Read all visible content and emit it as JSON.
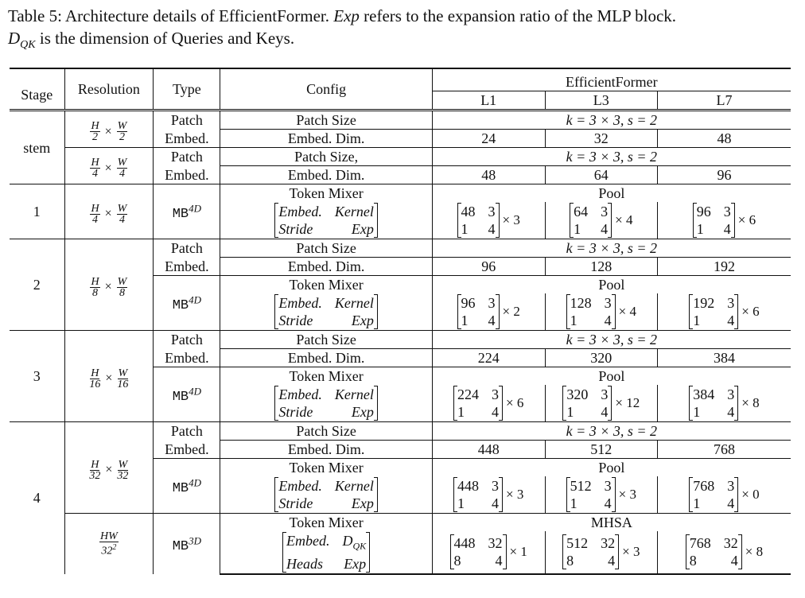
{
  "caption": {
    "label": "Table 5: Architecture details of EfficientFormer.",
    "exp": "Exp",
    "part2": " refers to the expansion ratio of the MLP block.",
    "dqk_main": "D",
    "dqk_sub": "QK",
    "part3": " is the dimension of Queries and Keys."
  },
  "header": {
    "stage": "Stage",
    "resolution": "Resolution",
    "type": "Type",
    "config": "Config",
    "group": "EfficientFormer",
    "l1": "L1",
    "l3": "L3",
    "l7": "L7"
  },
  "common": {
    "patch": "Patch",
    "embed": "Embed.",
    "patch_size": "Patch Size",
    "patch_size_comma": "Patch Size,",
    "embed_dim": "Embed. Dim.",
    "token_mixer": "Token Mixer",
    "ks": "k = 3 × 3, s = 2",
    "pool": "Pool",
    "mhsa": "MHSA",
    "mb": "MB",
    "sup4d": "4D",
    "sup3d": "3D",
    "times": "×",
    "cfg_embed": "Embed.",
    "cfg_kernel": "Kernel",
    "cfg_stride": "Stride",
    "cfg_exp": "Exp",
    "cfg_heads": "Heads",
    "cfg_dqk": "D",
    "cfg_dqk_sub": "QK"
  },
  "res": {
    "H": "H",
    "W": "W",
    "HW": "HW",
    "d2": "2",
    "d4": "4",
    "d8": "8",
    "d16": "16",
    "d32": "32",
    "d32sq": "32",
    "sq": "2"
  },
  "stages": {
    "stem": "stem",
    "s1": "1",
    "s2": "2",
    "s3": "3",
    "s4": "4"
  },
  "values": {
    "stem_a": [
      "24",
      "32",
      "48"
    ],
    "stem_b": [
      "48",
      "64",
      "96"
    ],
    "s1_mat": [
      {
        "e": "48",
        "k": "3",
        "s": "1",
        "x": "4",
        "rep": "× 3"
      },
      {
        "e": "64",
        "k": "3",
        "s": "1",
        "x": "4",
        "rep": "× 4"
      },
      {
        "e": "96",
        "k": "3",
        "s": "1",
        "x": "4",
        "rep": "× 6"
      }
    ],
    "s2_dim": [
      "96",
      "128",
      "192"
    ],
    "s2_mat": [
      {
        "e": "96",
        "k": "3",
        "s": "1",
        "x": "4",
        "rep": "× 2"
      },
      {
        "e": "128",
        "k": "3",
        "s": "1",
        "x": "4",
        "rep": "× 4"
      },
      {
        "e": "192",
        "k": "3",
        "s": "1",
        "x": "4",
        "rep": "× 6"
      }
    ],
    "s3_dim": [
      "224",
      "320",
      "384"
    ],
    "s3_mat": [
      {
        "e": "224",
        "k": "3",
        "s": "1",
        "x": "4",
        "rep": "× 6"
      },
      {
        "e": "320",
        "k": "3",
        "s": "1",
        "x": "4",
        "rep": "× 12"
      },
      {
        "e": "384",
        "k": "3",
        "s": "1",
        "x": "4",
        "rep": "× 8"
      }
    ],
    "s4_dim": [
      "448",
      "512",
      "768"
    ],
    "s4_mat": [
      {
        "e": "448",
        "k": "3",
        "s": "1",
        "x": "4",
        "rep": "× 3"
      },
      {
        "e": "512",
        "k": "3",
        "s": "1",
        "x": "4",
        "rep": "× 3"
      },
      {
        "e": "768",
        "k": "3",
        "s": "1",
        "x": "4",
        "rep": "× 0"
      }
    ],
    "s4_mhsa": [
      {
        "e": "448",
        "k": "32",
        "s": "8",
        "x": "4",
        "rep": "× 1"
      },
      {
        "e": "512",
        "k": "32",
        "s": "8",
        "x": "4",
        "rep": "× 3"
      },
      {
        "e": "768",
        "k": "32",
        "s": "8",
        "x": "4",
        "rep": "× 8"
      }
    ]
  }
}
